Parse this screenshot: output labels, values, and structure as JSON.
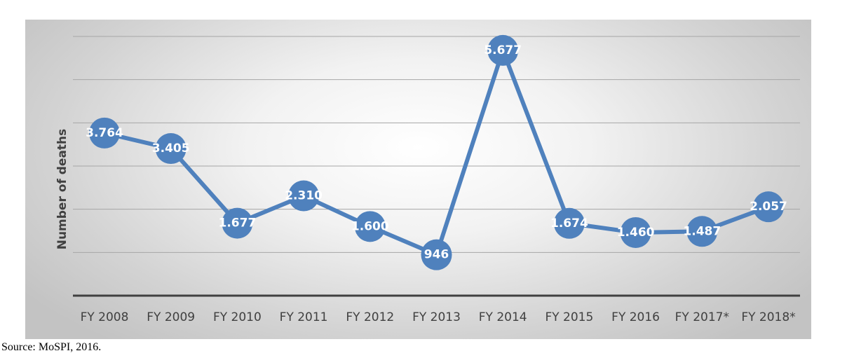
{
  "chart_data": {
    "type": "line",
    "title": "",
    "ylabel": "Number of deaths",
    "xlabel": "",
    "categories": [
      "FY 2008",
      "FY 2009",
      "FY 2010",
      "FY 2011",
      "FY 2012",
      "FY 2013",
      "FY 2014",
      "FY 2015",
      "FY 2016",
      "FY 2017*",
      "FY 2018*"
    ],
    "values": [
      3764,
      3405,
      1677,
      2310,
      1600,
      946,
      5677,
      1674,
      1460,
      1487,
      2057
    ],
    "labels": [
      "3.764",
      "3.405",
      "1.677",
      "2.310",
      "1.600",
      "946",
      "5.677",
      "1.674",
      "1.460",
      "1.487",
      "2.057"
    ],
    "ylim": [
      0,
      6000
    ],
    "grid": true,
    "colors": {
      "series": "#4f81bd",
      "gridline": "#a6a6a6",
      "baseline": "#404040",
      "label_text": "#ffffff"
    }
  },
  "source": "Source: MoSPI, 2016."
}
